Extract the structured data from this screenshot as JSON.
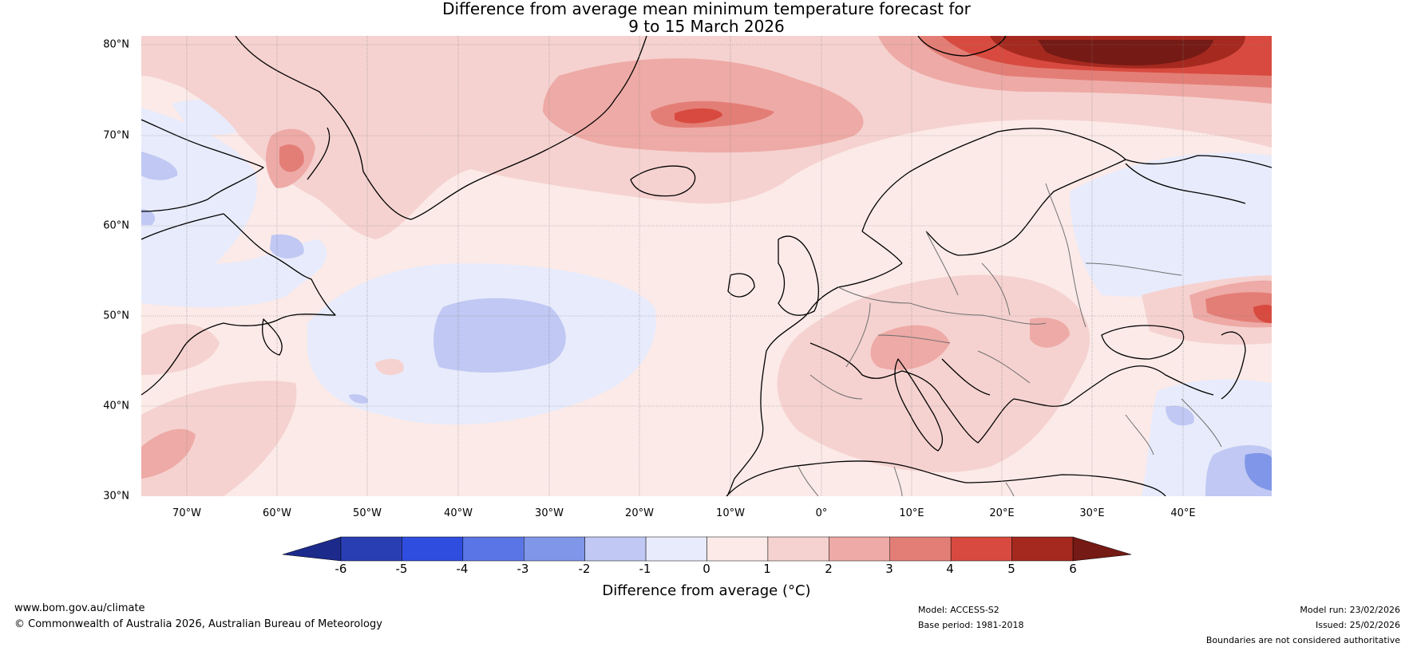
{
  "title": {
    "line1": "Difference from average mean minimum temperature forecast for",
    "line2": "9 to 15 March 2026"
  },
  "axes": {
    "lat_labels": [
      "80°N",
      "70°N",
      "60°N",
      "50°N",
      "40°N",
      "30°N"
    ],
    "lon_labels": [
      "70°W",
      "60°W",
      "50°W",
      "40°W",
      "30°W",
      "20°W",
      "10°W",
      "0°",
      "10°E",
      "20°E",
      "30°E",
      "40°E"
    ]
  },
  "colorbar": {
    "ticks": [
      "-6",
      "-5",
      "-4",
      "-3",
      "-2",
      "-1",
      "0",
      "1",
      "2",
      "3",
      "4",
      "5",
      "6"
    ],
    "colors": [
      "#2a3eb4",
      "#2f4ee0",
      "#5a76e6",
      "#8096e8",
      "#c0c8f3",
      "#e8ebfb",
      "#fbeae8",
      "#f5d2d0",
      "#eeaaa6",
      "#e37e76",
      "#d84a3f",
      "#a5291f"
    ],
    "under_color": "#1c2a8c",
    "over_color": "#751a14",
    "label": "Difference from average (°C)"
  },
  "footer": {
    "website": "www.bom.gov.au/climate",
    "copyright": "© Commonwealth of Australia 2026, Australian Bureau of Meteorology",
    "model": "Model: ACCESS-S2",
    "base_period": "Base period: 1981-2018",
    "model_run": "Model run: 23/02/2026",
    "issued": "Issued: 25/02/2026",
    "boundaries": "Boundaries are not considered authoritative"
  },
  "map": {
    "ocean_fill": "#fbeae8",
    "coast_color": "#000000",
    "border_color": "#707070",
    "grid_color": "#808080"
  }
}
